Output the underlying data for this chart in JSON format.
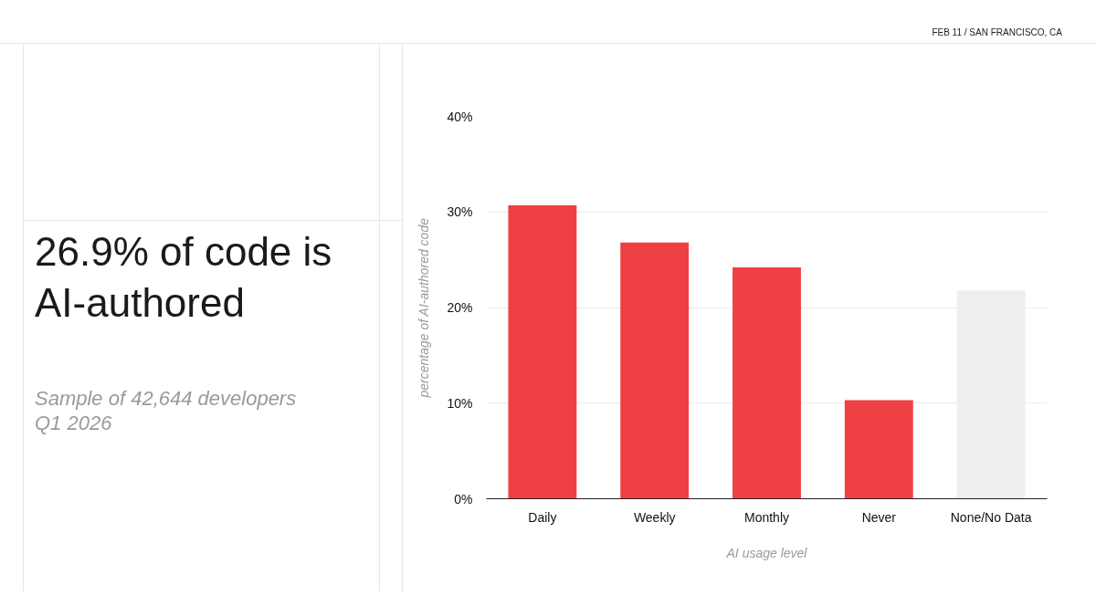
{
  "chart_data": {
    "type": "bar",
    "title": "26.9% of code is AI-authored",
    "subtitle": "Sample of 42,644 developers\nQ1 2026",
    "xlabel": "AI usage level",
    "ylabel": "percentage of AI-authored code",
    "annotations": [
      "FEB 11 / SAN FRANCISCO, CA"
    ],
    "categories": [
      "Daily",
      "Weekly",
      "Monthly",
      "Never",
      "None/No Data"
    ],
    "values": [
      30.7,
      26.8,
      24.2,
      10.3,
      21.8
    ],
    "colors": [
      "#ef4043",
      "#ef4043",
      "#ef4043",
      "#ef4043",
      "#eeeeee"
    ],
    "ylim": [
      0,
      40
    ],
    "yticks": [
      {
        "value": 0,
        "label": "0%"
      },
      {
        "value": 10,
        "label": "10%"
      },
      {
        "value": 20,
        "label": "20%"
      },
      {
        "value": 30,
        "label": "30%"
      },
      {
        "value": 40,
        "label": "40%"
      }
    ],
    "grid": "y"
  }
}
